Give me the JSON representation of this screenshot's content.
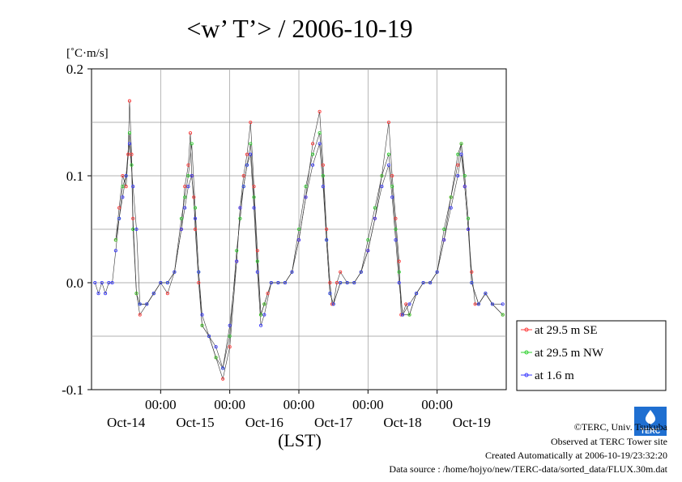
{
  "chart_data": {
    "type": "line",
    "title": "<w’ T’> / 2006-10-19",
    "ylabel": "[˚C·m/s]",
    "xlabel": "(LST)",
    "ylim": [
      -0.1,
      0.2
    ],
    "xlim": [
      -1.0,
      5.0
    ],
    "y_ticks": [
      "0.2",
      "0.1",
      "0.0",
      "-0.1"
    ],
    "y_tick_values": [
      0.2,
      0.1,
      0.0,
      -0.1
    ],
    "x_time_labels": [
      "00:00",
      "00:00",
      "00:00",
      "00:00",
      "00:00"
    ],
    "x_day_labels": [
      "Oct-14",
      "Oct-15",
      "Oct-16",
      "Oct-17",
      "Oct-18",
      "Oct-19"
    ],
    "x_tick_days": [
      0,
      1,
      2,
      3,
      4
    ],
    "x_day_positions": [
      -0.5,
      0.5,
      1.5,
      2.5,
      3.5,
      4.5
    ],
    "grid": true,
    "legend_placement": "right",
    "series": [
      {
        "name": "at 29.5 m SE",
        "color": "#ff3b3b",
        "x": [
          -0.65,
          -0.6,
          -0.55,
          -0.5,
          -0.47,
          -0.45,
          -0.42,
          -0.4,
          -0.35,
          -0.3,
          -0.2,
          -0.1,
          0.0,
          0.1,
          0.2,
          0.3,
          0.35,
          0.4,
          0.43,
          0.45,
          0.48,
          0.5,
          0.55,
          0.6,
          0.7,
          0.8,
          0.9,
          1.0,
          1.1,
          1.15,
          1.2,
          1.25,
          1.3,
          1.35,
          1.4,
          1.45,
          1.5,
          1.55,
          1.6,
          1.7,
          1.8,
          1.9,
          2.0,
          2.1,
          2.2,
          2.3,
          2.35,
          2.4,
          2.45,
          2.48,
          2.5,
          2.55,
          2.6,
          2.7,
          2.8,
          2.9,
          3.0,
          3.1,
          3.2,
          3.3,
          3.35,
          3.4,
          3.45,
          3.48,
          3.5,
          3.55,
          3.6,
          3.7,
          3.8,
          3.9,
          4.0,
          4.1,
          4.2,
          4.3,
          4.35,
          4.4,
          4.45,
          4.5,
          4.55,
          4.6,
          4.7,
          4.8,
          4.95
        ],
        "y": [
          0.04,
          0.07,
          0.1,
          0.09,
          0.12,
          0.17,
          0.12,
          0.06,
          -0.01,
          -0.03,
          -0.02,
          -0.01,
          0.0,
          -0.01,
          0.01,
          0.05,
          0.09,
          0.11,
          0.14,
          0.1,
          0.08,
          0.05,
          0.0,
          -0.04,
          -0.05,
          -0.07,
          -0.09,
          -0.06,
          0.02,
          0.07,
          0.1,
          0.12,
          0.15,
          0.09,
          0.03,
          -0.03,
          -0.02,
          -0.01,
          0.0,
          0.0,
          0.0,
          0.01,
          0.04,
          0.08,
          0.13,
          0.16,
          0.11,
          0.05,
          0.0,
          -0.02,
          -0.02,
          0.0,
          0.01,
          0.0,
          0.0,
          0.01,
          0.03,
          0.06,
          0.1,
          0.15,
          0.1,
          0.06,
          0.02,
          -0.03,
          -0.03,
          -0.02,
          -0.03,
          -0.01,
          0.0,
          0.0,
          0.01,
          0.04,
          0.08,
          0.11,
          0.13,
          0.09,
          0.05,
          0.01,
          -0.02,
          -0.02,
          -0.01,
          -0.02,
          -0.03
        ]
      },
      {
        "name": "at 29.5 m NW",
        "color": "#2fd12f",
        "x": [
          -0.65,
          -0.6,
          -0.55,
          -0.5,
          -0.45,
          -0.42,
          -0.4,
          -0.35,
          -0.3,
          -0.2,
          -0.1,
          0.0,
          0.1,
          0.2,
          0.3,
          0.35,
          0.4,
          0.45,
          0.5,
          0.55,
          0.6,
          0.7,
          0.8,
          0.9,
          1.0,
          1.1,
          1.15,
          1.2,
          1.25,
          1.3,
          1.35,
          1.4,
          1.45,
          1.5,
          1.6,
          1.7,
          1.8,
          1.9,
          2.0,
          2.1,
          2.2,
          2.3,
          2.35,
          2.4,
          2.45,
          2.5,
          2.6,
          2.7,
          2.8,
          2.9,
          3.0,
          3.1,
          3.2,
          3.3,
          3.35,
          3.4,
          3.45,
          3.5,
          3.6,
          3.7,
          3.8,
          3.9,
          4.0,
          4.1,
          4.2,
          4.3,
          4.35,
          4.4,
          4.45,
          4.5,
          4.6,
          4.7,
          4.8,
          4.95
        ],
        "y": [
          0.04,
          0.06,
          0.09,
          0.1,
          0.14,
          0.11,
          0.05,
          -0.01,
          -0.02,
          -0.02,
          -0.01,
          0.0,
          0.0,
          0.01,
          0.06,
          0.08,
          0.1,
          0.13,
          0.07,
          0.01,
          -0.04,
          -0.05,
          -0.07,
          -0.08,
          -0.05,
          0.03,
          0.06,
          0.09,
          0.11,
          0.13,
          0.08,
          0.02,
          -0.03,
          -0.02,
          0.0,
          0.0,
          0.0,
          0.01,
          0.05,
          0.09,
          0.12,
          0.14,
          0.1,
          0.04,
          -0.01,
          -0.02,
          0.0,
          0.0,
          0.0,
          0.01,
          0.04,
          0.07,
          0.1,
          0.12,
          0.09,
          0.05,
          0.01,
          -0.03,
          -0.03,
          -0.01,
          0.0,
          0.0,
          0.01,
          0.05,
          0.08,
          0.12,
          0.13,
          0.1,
          0.06,
          0.0,
          -0.02,
          -0.01,
          -0.02,
          -0.03
        ]
      },
      {
        "name": "at 1.6 m",
        "color": "#3a3aff",
        "x": [
          -0.95,
          -0.9,
          -0.85,
          -0.8,
          -0.75,
          -0.7,
          -0.65,
          -0.6,
          -0.55,
          -0.5,
          -0.45,
          -0.4,
          -0.35,
          -0.3,
          -0.2,
          -0.1,
          0.0,
          0.1,
          0.2,
          0.3,
          0.35,
          0.4,
          0.45,
          0.5,
          0.55,
          0.6,
          0.7,
          0.8,
          0.9,
          1.0,
          1.1,
          1.15,
          1.2,
          1.25,
          1.3,
          1.35,
          1.4,
          1.45,
          1.5,
          1.6,
          1.7,
          1.8,
          1.9,
          2.0,
          2.1,
          2.2,
          2.3,
          2.35,
          2.4,
          2.45,
          2.5,
          2.6,
          2.7,
          2.8,
          2.9,
          3.0,
          3.1,
          3.2,
          3.3,
          3.35,
          3.4,
          3.45,
          3.5,
          3.6,
          3.7,
          3.8,
          3.9,
          4.0,
          4.1,
          4.2,
          4.3,
          4.35,
          4.4,
          4.45,
          4.5,
          4.6,
          4.7,
          4.8,
          4.95
        ],
        "y": [
          0.0,
          -0.01,
          0.0,
          -0.01,
          0.0,
          0.0,
          0.03,
          0.06,
          0.08,
          0.1,
          0.13,
          0.09,
          0.05,
          -0.02,
          -0.02,
          -0.01,
          0.0,
          0.0,
          0.01,
          0.05,
          0.07,
          0.09,
          0.1,
          0.06,
          0.01,
          -0.03,
          -0.05,
          -0.06,
          -0.08,
          -0.04,
          0.02,
          0.07,
          0.09,
          0.11,
          0.12,
          0.07,
          0.01,
          -0.04,
          -0.03,
          0.0,
          0.0,
          0.0,
          0.01,
          0.04,
          0.08,
          0.11,
          0.13,
          0.09,
          0.04,
          -0.01,
          -0.02,
          0.0,
          0.0,
          0.0,
          0.01,
          0.03,
          0.06,
          0.09,
          0.11,
          0.08,
          0.04,
          0.0,
          -0.03,
          -0.02,
          -0.01,
          0.0,
          0.0,
          0.01,
          0.04,
          0.07,
          0.1,
          0.12,
          0.09,
          0.05,
          0.0,
          -0.02,
          -0.01,
          -0.02,
          -0.02
        ]
      }
    ]
  },
  "footer": {
    "copyright": "©TERC, Univ. Tsukuba",
    "observed": "Observed at TERC Tower site",
    "created": "Created Automatically at 2006-10-19/23:32:20",
    "source": "Data source : /home/hojyo/new/TERC-data/sorted_data/FLUX.30m.dat"
  },
  "logo": {
    "text": "TERC",
    "color": "#1f6fd1"
  }
}
